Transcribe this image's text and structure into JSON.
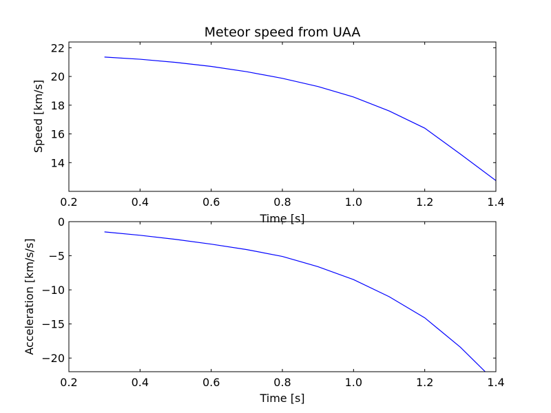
{
  "chart_data": [
    {
      "type": "line",
      "title": "Meteor speed from  UAA",
      "xlabel": "Time [s]",
      "ylabel": "Speed [km/s]",
      "xlim": [
        0.2,
        1.4
      ],
      "ylim": [
        12.0,
        22.4
      ],
      "xticks": [
        0.2,
        0.4,
        0.6,
        0.8,
        1.0,
        1.2,
        1.4
      ],
      "xtick_labels": [
        "0.2",
        "0.4",
        "0.6",
        "0.8",
        "1.0",
        "1.2",
        "1.4"
      ],
      "yticks": [
        14,
        16,
        18,
        20,
        22
      ],
      "ytick_labels": [
        "14",
        "16",
        "18",
        "20",
        "22"
      ],
      "grid": false,
      "series": [
        {
          "color": "#0000ff",
          "x": [
            0.3,
            0.4,
            0.5,
            0.6,
            0.7,
            0.8,
            0.9,
            1.0,
            1.1,
            1.2,
            1.3,
            1.4
          ],
          "y": [
            21.35,
            21.2,
            20.98,
            20.7,
            20.33,
            19.87,
            19.3,
            18.57,
            17.6,
            16.4,
            14.6,
            12.75
          ]
        }
      ]
    },
    {
      "type": "line",
      "title": "",
      "xlabel": "Time [s]",
      "ylabel": "Acceleration [km/s/s]",
      "xlim": [
        0.2,
        1.4
      ],
      "ylim": [
        -22.0,
        0.0
      ],
      "xticks": [
        0.2,
        0.4,
        0.6,
        0.8,
        1.0,
        1.2,
        1.4
      ],
      "xtick_labels": [
        "0.2",
        "0.4",
        "0.6",
        "0.8",
        "1.0",
        "1.2",
        "1.4"
      ],
      "yticks": [
        0,
        -5,
        -10,
        -15,
        -20
      ],
      "ytick_labels": [
        "0",
        "−5",
        "−10",
        "−15",
        "−20"
      ],
      "grid": false,
      "series": [
        {
          "color": "#0000ff",
          "x": [
            0.3,
            0.4,
            0.5,
            0.6,
            0.7,
            0.8,
            0.9,
            1.0,
            1.1,
            1.2,
            1.3,
            1.37
          ],
          "y": [
            -1.5,
            -2.0,
            -2.6,
            -3.3,
            -4.1,
            -5.1,
            -6.6,
            -8.5,
            -11.0,
            -14.1,
            -18.4,
            -22.0
          ]
        }
      ]
    }
  ]
}
